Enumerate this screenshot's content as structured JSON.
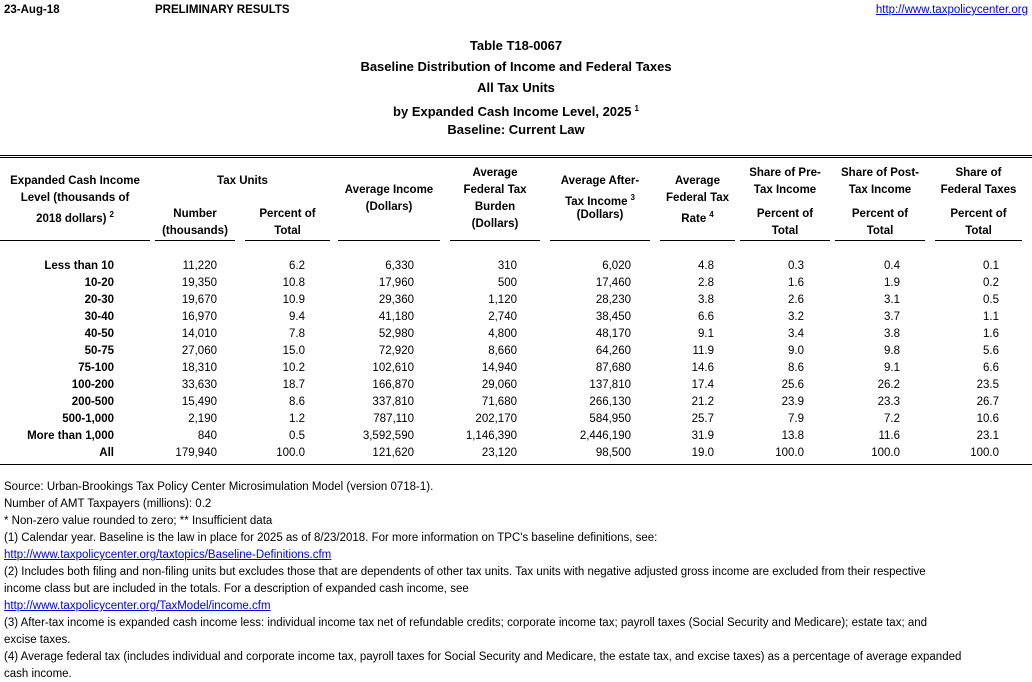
{
  "header": {
    "date": "23-Aug-18",
    "status": "PRELIMINARY RESULTS",
    "url": "http://www.taxpolicycenter.org"
  },
  "title": {
    "lines": [
      "Table T18-0067",
      "Baseline Distribution of Income and Federal Taxes",
      "All Tax Units",
      "by Expanded Cash Income Level, 2025",
      "Baseline: Current Law"
    ],
    "sup": "1"
  },
  "table": {
    "column_groups": [
      {
        "lines": [
          "Expanded Cash Income",
          "Level (thousands of",
          "2018 dollars)"
        ],
        "sup": "2"
      },
      {
        "lines": [
          "Tax Units"
        ],
        "subcolumns": [
          {
            "lines": [
              "Number",
              "(thousands)"
            ]
          },
          {
            "lines": [
              "Percent of",
              "Total"
            ]
          }
        ]
      },
      {
        "lines": [
          "Average Income",
          "(Dollars)"
        ]
      },
      {
        "lines": [
          "Average",
          "Federal Tax",
          "Burden",
          "(Dollars)"
        ]
      },
      {
        "lines": [
          "Average After-",
          "Tax Income",
          "(Dollars)"
        ],
        "sup": "3"
      },
      {
        "lines": [
          "Average",
          "Federal Tax",
          "Rate"
        ],
        "sup": "4"
      },
      {
        "lines": [
          "Share of Pre-",
          "Tax Income"
        ],
        "subcolumns": [
          {
            "lines": [
              "Percent of",
              "Total"
            ]
          }
        ]
      },
      {
        "lines": [
          "Share of Post-",
          "Tax Income"
        ],
        "subcolumns": [
          {
            "lines": [
              "Percent of",
              "Total"
            ]
          }
        ]
      },
      {
        "lines": [
          "Share of",
          "Federal Taxes"
        ],
        "subcolumns": [
          {
            "lines": [
              "Percent of",
              "Total"
            ]
          }
        ]
      }
    ],
    "rows": [
      [
        "Less than 10",
        "11,220",
        "6.2",
        "6,330",
        "310",
        "6,020",
        "4.8",
        "0.3",
        "0.4",
        "0.1"
      ],
      [
        "10-20",
        "19,350",
        "10.8",
        "17,960",
        "500",
        "17,460",
        "2.8",
        "1.6",
        "1.9",
        "0.2"
      ],
      [
        "20-30",
        "19,670",
        "10.9",
        "29,360",
        "1,120",
        "28,230",
        "3.8",
        "2.6",
        "3.1",
        "0.5"
      ],
      [
        "30-40",
        "16,970",
        "9.4",
        "41,180",
        "2,740",
        "38,450",
        "6.6",
        "3.2",
        "3.7",
        "1.1"
      ],
      [
        "40-50",
        "14,010",
        "7.8",
        "52,980",
        "4,800",
        "48,170",
        "9.1",
        "3.4",
        "3.8",
        "1.6"
      ],
      [
        "50-75",
        "27,060",
        "15.0",
        "72,920",
        "8,660",
        "64,260",
        "11.9",
        "9.0",
        "9.8",
        "5.6"
      ],
      [
        "75-100",
        "18,310",
        "10.2",
        "102,610",
        "14,940",
        "87,680",
        "14.6",
        "8.6",
        "9.1",
        "6.6"
      ],
      [
        "100-200",
        "33,630",
        "18.7",
        "166,870",
        "29,060",
        "137,810",
        "17.4",
        "25.6",
        "26.2",
        "23.5"
      ],
      [
        "200-500",
        "15,490",
        "8.6",
        "337,810",
        "71,680",
        "266,130",
        "21.2",
        "23.9",
        "23.3",
        "26.7"
      ],
      [
        "500-1,000",
        "2,190",
        "1.2",
        "787,110",
        "202,170",
        "584,950",
        "25.7",
        "7.9",
        "7.2",
        "10.6"
      ],
      [
        "More than 1,000",
        "840",
        "0.5",
        "3,592,590",
        "1,146,390",
        "2,446,190",
        "31.9",
        "13.8",
        "11.6",
        "23.1"
      ],
      [
        "All",
        "179,940",
        "100.0",
        "121,620",
        "23,120",
        "98,500",
        "19.0",
        "100.0",
        "100.0",
        "100.0"
      ]
    ]
  },
  "footnote_lines": [
    "Source: Urban-Brookings Tax Policy Center Microsimulation Model (version 0718-1).",
    "Number of AMT Taxpayers (millions): 0.2",
    "* Non-zero value rounded to zero; ** Insufficient data",
    "(1) Calendar year. Baseline is the law in place for 2025 as of 8/23/2018. For more information on TPC's baseline definitions, see:",
    "http://www.taxpolicycenter.org/taxtopics/Baseline-Definitions.cfm",
    "(2) Includes both filing and non-filing units but excludes those that are dependents of other tax units. Tax units with negative adjusted gross income are excluded from their respective",
    "income class but are included in the totals. For a description of expanded cash income, see",
    "http://www.taxpolicycenter.org/TaxModel/income.cfm",
    "(3) After-tax income is expanded cash income less: individual income tax net of refundable credits; corporate income tax; payroll taxes (Social Security and Medicare); estate tax; and",
    "excise taxes.",
    "(4) Average federal tax (includes individual and corporate income tax, payroll taxes for Social Security and Medicare, the estate tax, and excise taxes) as a percentage of average expanded",
    "cash income."
  ]
}
